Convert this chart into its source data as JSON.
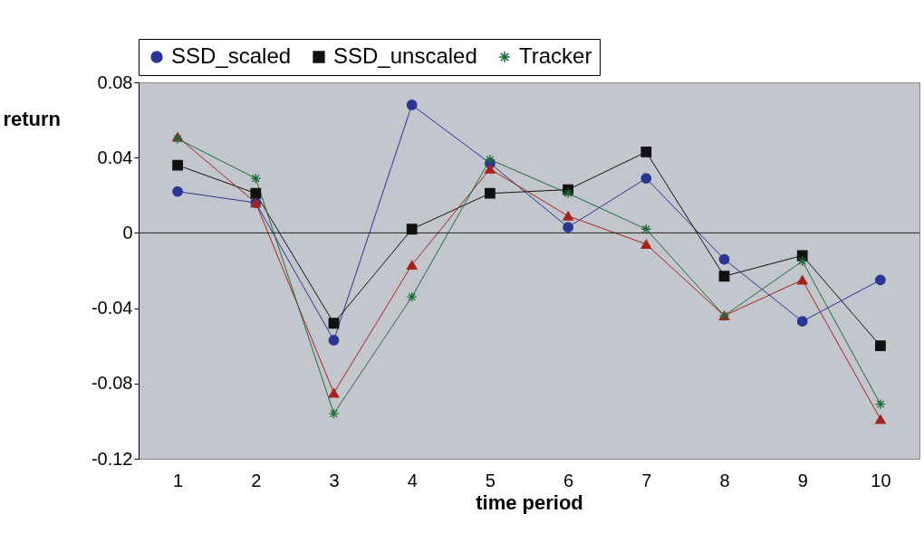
{
  "chart_data": {
    "type": "line",
    "xlabel": "time period",
    "ylabel": "return",
    "categories": [
      "1",
      "2",
      "3",
      "4",
      "5",
      "6",
      "7",
      "8",
      "9",
      "10"
    ],
    "series": [
      {
        "name": "SSD_scaled",
        "color": "#2b3594",
        "marker": "circle",
        "values": [
          0.022,
          0.016,
          -0.057,
          0.068,
          0.037,
          0.003,
          0.029,
          -0.014,
          -0.047,
          -0.025
        ]
      },
      {
        "name": "SSD_unscaled",
        "color": "#111111",
        "marker": "square",
        "values": [
          0.036,
          0.021,
          -0.048,
          0.002,
          0.021,
          0.023,
          0.043,
          -0.023,
          -0.012,
          -0.06
        ]
      },
      {
        "color": "#a3231f",
        "marker": "triangle",
        "values": [
          0.051,
          0.016,
          -0.085,
          -0.017,
          0.034,
          0.009,
          -0.006,
          -0.044,
          -0.025,
          -0.099
        ]
      },
      {
        "name": "Tracker",
        "color": "#1e6b3a",
        "marker": "cross",
        "values": [
          0.05,
          0.029,
          -0.096,
          -0.034,
          0.039,
          0.021,
          0.002,
          -0.044,
          -0.015,
          -0.091
        ]
      }
    ],
    "ylim": [
      -0.12,
      0.08
    ],
    "yticks": [
      -0.12,
      -0.08,
      -0.04,
      0,
      0.04,
      0.08
    ],
    "ref_lines": [
      {
        "axis": "y",
        "value": 0,
        "color": "#222222"
      }
    ],
    "grid": false,
    "legend": "top",
    "line_style": "solid"
  }
}
